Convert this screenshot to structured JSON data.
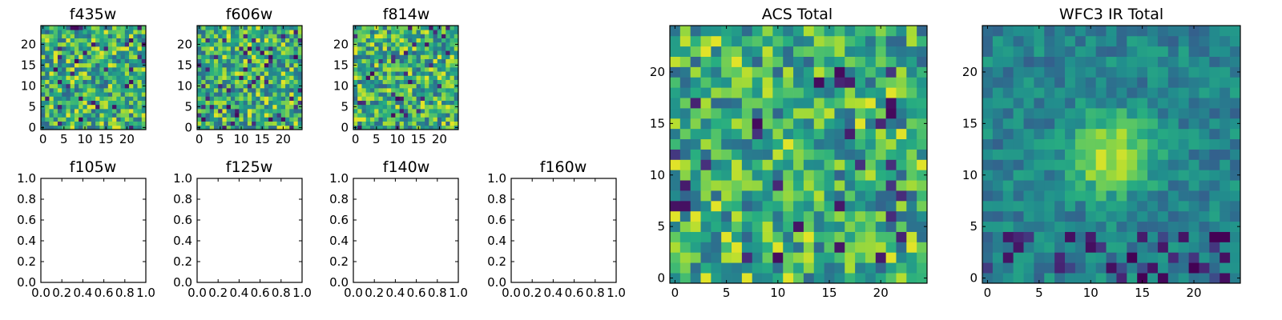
{
  "figure": {
    "panels": [
      {
        "id": "f435w",
        "title": "f435w",
        "kind": "image"
      },
      {
        "id": "f606w",
        "title": "f606w",
        "kind": "image"
      },
      {
        "id": "f814w",
        "title": "f814w",
        "kind": "image"
      },
      {
        "id": "f105w",
        "title": "f105w",
        "kind": "empty"
      },
      {
        "id": "f125w",
        "title": "f125w",
        "kind": "empty"
      },
      {
        "id": "f140w",
        "title": "f140w",
        "kind": "empty"
      },
      {
        "id": "f160w",
        "title": "f160w",
        "kind": "empty"
      },
      {
        "id": "acs_total",
        "title": "ACS Total",
        "kind": "image"
      },
      {
        "id": "wfc3_total",
        "title": "WFC3 IR Total",
        "kind": "image"
      }
    ]
  },
  "chart_data": [
    {
      "type": "heatmap",
      "title": "f435w",
      "grid_size": [
        25,
        25
      ],
      "xlim": [
        -0.5,
        24.5
      ],
      "ylim": [
        -0.5,
        24.5
      ],
      "xticks": [
        0,
        5,
        10,
        15,
        20
      ],
      "yticks": [
        0,
        5,
        10,
        15,
        20
      ],
      "colormap": "viridis",
      "pattern": "noise",
      "seed": 11
    },
    {
      "type": "heatmap",
      "title": "f606w",
      "grid_size": [
        25,
        25
      ],
      "xlim": [
        -0.5,
        24.5
      ],
      "ylim": [
        -0.5,
        24.5
      ],
      "xticks": [
        0,
        5,
        10,
        15,
        20
      ],
      "yticks": [
        0,
        5,
        10,
        15,
        20
      ],
      "colormap": "viridis",
      "pattern": "noise",
      "seed": 23
    },
    {
      "type": "heatmap",
      "title": "f814w",
      "grid_size": [
        25,
        25
      ],
      "xlim": [
        -0.5,
        24.5
      ],
      "ylim": [
        -0.5,
        24.5
      ],
      "xticks": [
        0,
        5,
        10,
        15,
        20
      ],
      "yticks": [
        0,
        5,
        10,
        15,
        20
      ],
      "colormap": "viridis",
      "pattern": "noise",
      "seed": 37
    },
    {
      "type": "scatter",
      "title": "f105w",
      "series": [],
      "xlim": [
        0,
        1
      ],
      "ylim": [
        0,
        1
      ],
      "xticks": [
        "0.0",
        "0.2",
        "0.4",
        "0.6",
        "0.8",
        "1.0"
      ],
      "yticks": [
        "0.0",
        "0.2",
        "0.4",
        "0.6",
        "0.8",
        "1.0"
      ]
    },
    {
      "type": "scatter",
      "title": "f125w",
      "series": [],
      "xlim": [
        0,
        1
      ],
      "ylim": [
        0,
        1
      ],
      "xticks": [
        "0.0",
        "0.2",
        "0.4",
        "0.6",
        "0.8",
        "1.0"
      ],
      "yticks": [
        "0.0",
        "0.2",
        "0.4",
        "0.6",
        "0.8",
        "1.0"
      ]
    },
    {
      "type": "scatter",
      "title": "f140w",
      "series": [],
      "xlim": [
        0,
        1
      ],
      "ylim": [
        0,
        1
      ],
      "xticks": [
        "0.0",
        "0.2",
        "0.4",
        "0.6",
        "0.8",
        "1.0"
      ],
      "yticks": [
        "0.0",
        "0.2",
        "0.4",
        "0.6",
        "0.8",
        "1.0"
      ]
    },
    {
      "type": "scatter",
      "title": "f160w",
      "series": [],
      "xlim": [
        0,
        1
      ],
      "ylim": [
        0,
        1
      ],
      "xticks": [
        "0.0",
        "0.2",
        "0.4",
        "0.6",
        "0.8",
        "1.0"
      ],
      "yticks": [
        "0.0",
        "0.2",
        "0.4",
        "0.6",
        "0.8",
        "1.0"
      ]
    },
    {
      "type": "heatmap",
      "title": "ACS Total",
      "grid_size": [
        25,
        25
      ],
      "xlim": [
        -0.5,
        24.5
      ],
      "ylim": [
        -0.5,
        24.5
      ],
      "xticks": [
        0,
        5,
        10,
        15,
        20
      ],
      "yticks": [
        0,
        5,
        10,
        15,
        20
      ],
      "colormap": "viridis",
      "pattern": "noise",
      "seed": 53
    },
    {
      "type": "heatmap",
      "title": "WFC3 IR Total",
      "grid_size": [
        25,
        25
      ],
      "xlim": [
        -0.5,
        24.5
      ],
      "ylim": [
        -0.5,
        24.5
      ],
      "xticks": [
        0,
        5,
        10,
        15,
        20
      ],
      "yticks": [
        0,
        5,
        10,
        15,
        20
      ],
      "colormap": "viridis",
      "pattern": "centered-source",
      "source_center": [
        12,
        12
      ],
      "seed": 71
    }
  ]
}
